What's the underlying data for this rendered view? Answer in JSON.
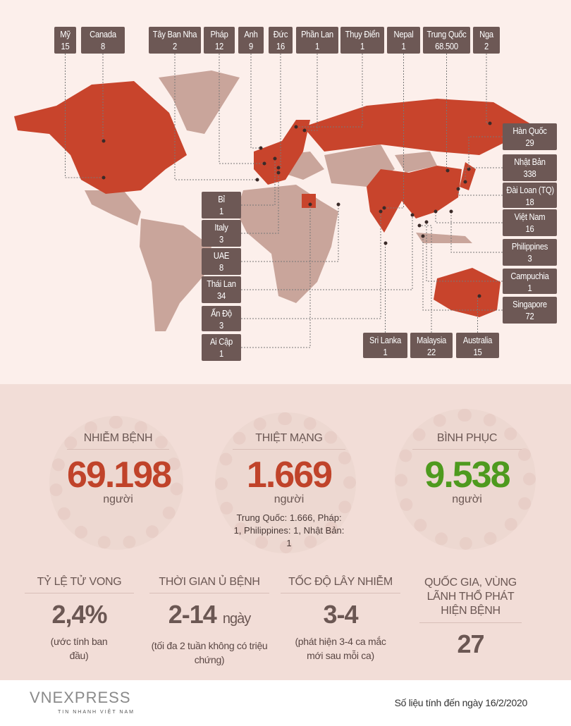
{
  "map": {
    "colors": {
      "affected": "#c8442c",
      "unaffected": "#c9a59b",
      "label_bg": "#6d5855"
    },
    "labels": [
      {
        "country": "Mỹ",
        "cases": "15"
      },
      {
        "country": "Canada",
        "cases": "8"
      },
      {
        "country": "Tây Ban Nha",
        "cases": "2"
      },
      {
        "country": "Pháp",
        "cases": "12"
      },
      {
        "country": "Anh",
        "cases": "9"
      },
      {
        "country": "Đức",
        "cases": "16"
      },
      {
        "country": "Phần Lan",
        "cases": "1"
      },
      {
        "country": "Thụy Điển",
        "cases": "1"
      },
      {
        "country": "Nepal",
        "cases": "1"
      },
      {
        "country": "Trung Quốc",
        "cases": "68.500"
      },
      {
        "country": "Nga",
        "cases": "2"
      },
      {
        "country": "Hàn Quốc",
        "cases": "29"
      },
      {
        "country": "Nhật Bản",
        "cases": "338"
      },
      {
        "country": "Đài Loan (TQ)",
        "cases": "18"
      },
      {
        "country": "Việt Nam",
        "cases": "16"
      },
      {
        "country": "Philippines",
        "cases": "3"
      },
      {
        "country": "Campuchia",
        "cases": "1"
      },
      {
        "country": "Singapore",
        "cases": "72"
      },
      {
        "country": "Bỉ",
        "cases": "1"
      },
      {
        "country": "Italy",
        "cases": "3"
      },
      {
        "country": "UAE",
        "cases": "8"
      },
      {
        "country": "Thái Lan",
        "cases": "34"
      },
      {
        "country": "Ấn Độ",
        "cases": "3"
      },
      {
        "country": "Ai Cập",
        "cases": "1"
      },
      {
        "country": "Sri Lanka",
        "cases": "1"
      },
      {
        "country": "Malaysia",
        "cases": "22"
      },
      {
        "country": "Australia",
        "cases": "15"
      }
    ]
  },
  "stats": {
    "infected": {
      "title": "NHIỄM BỆNH",
      "value": "69.198",
      "unit": "người",
      "color": "#c0432a"
    },
    "deaths": {
      "title": "THIỆT MẠNG",
      "value": "1.669",
      "unit": "người",
      "color": "#c0432a",
      "note": "Trung Quốc: 1.666, Pháp: 1, Philippines: 1, Nhật Bản: 1"
    },
    "recovered": {
      "title": "BÌNH PHỤC",
      "value": "9.538",
      "unit": "người",
      "color": "#4e9a1e"
    }
  },
  "facts": [
    {
      "title": "TỶ LỆ TỬ VONG",
      "value": "2,4%",
      "unit": "",
      "note": "(ước tính ban đầu)"
    },
    {
      "title": "THỜI GIAN Ủ BỆNH",
      "value": "2-14",
      "unit": "ngày",
      "note": "(tối đa 2 tuần không có triệu chứng)"
    },
    {
      "title": "TỐC ĐỘ LÂY NHIỄM",
      "value": "3-4",
      "unit": "",
      "note": "(phát hiện 3-4 ca mắc mới sau mỗi ca)"
    },
    {
      "title": "QUỐC GIA, VÙNG LÃNH THỔ PHÁT HIỆN BỆNH",
      "value": "27",
      "unit": "",
      "note": ""
    }
  ],
  "footer": {
    "logo": "VNEXPRESS",
    "logo_tagline": "TIN NHANH VIỆT NAM",
    "source": "Số liệu tính đến ngày 16/2/2020"
  }
}
